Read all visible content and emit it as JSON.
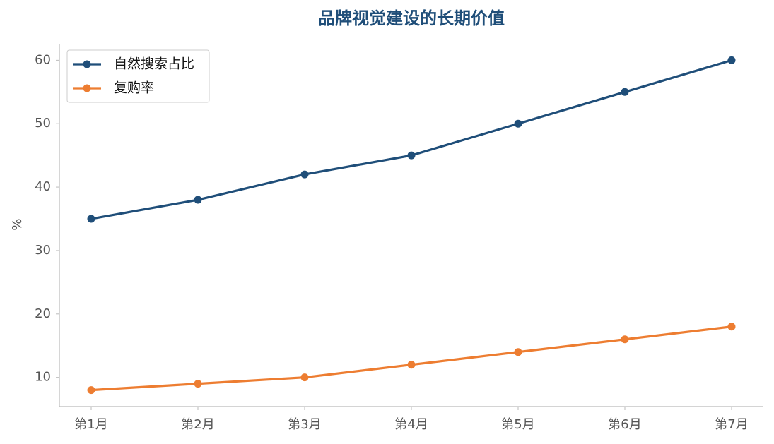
{
  "chart_data": {
    "type": "line",
    "title": "品牌视觉建设的长期价值",
    "y_label": "%",
    "categories": [
      "第1月",
      "第2月",
      "第3月",
      "第4月",
      "第5月",
      "第6月",
      "第7月"
    ],
    "series": [
      {
        "name": "自然搜索占比",
        "color": "#1f4e79",
        "values": [
          35,
          38,
          42,
          45,
          50,
          55,
          60
        ]
      },
      {
        "name": "复购率",
        "color": "#ed7d31",
        "values": [
          8,
          9,
          10,
          12,
          14,
          16,
          18
        ]
      }
    ],
    "ylim": [
      5.4,
      62.6
    ],
    "yticks": [
      10,
      20,
      30,
      40,
      50,
      60
    ],
    "grid": false,
    "legend": "upper left"
  }
}
